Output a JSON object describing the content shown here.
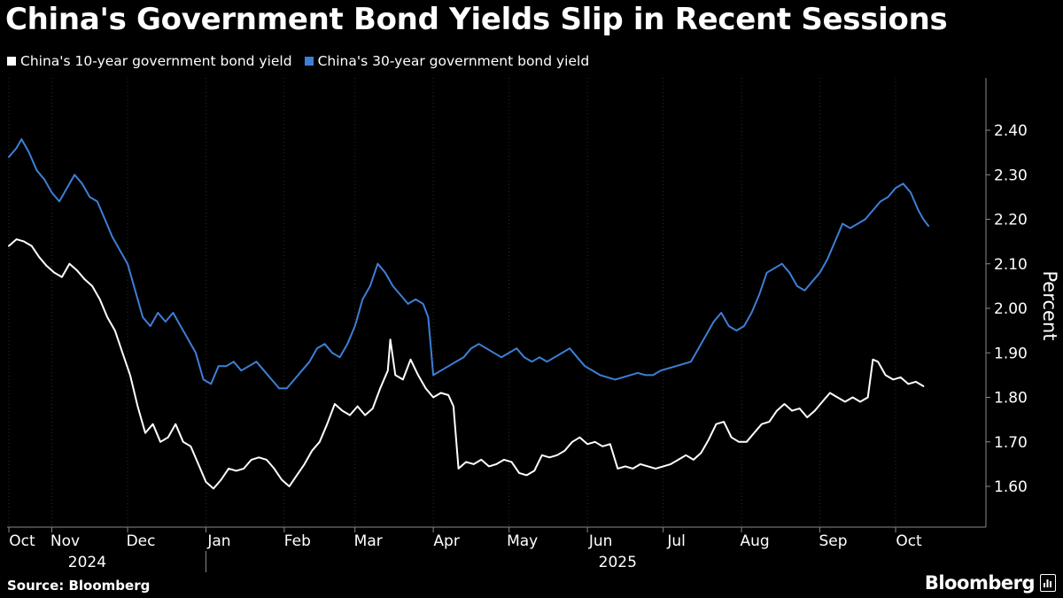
{
  "title": "China's Government Bond Yields Slip in Recent Sessions",
  "legend": [
    {
      "label": "China's 10-year government bond yield",
      "color": "#ffffff"
    },
    {
      "label": "China's 30-year government bond yield",
      "color": "#3d7fd6"
    }
  ],
  "source": "Source: Bloomberg",
  "brand": "Bloomberg",
  "chart_data": {
    "type": "line",
    "title": "China's Government Bond Yields Slip in Recent Sessions",
    "ylabel": "Percent",
    "xlabel": "",
    "ylim": [
      1.52,
      2.46
    ],
    "yticks": [
      1.6,
      1.7,
      1.8,
      1.9,
      2.0,
      2.1,
      2.2,
      2.3,
      2.4
    ],
    "ytick_labels": [
      "1.60",
      "1.70",
      "1.80",
      "1.90",
      "2.00",
      "2.10",
      "2.20",
      "2.30",
      "2.40"
    ],
    "x_domain": [
      0,
      385
    ],
    "month_ticks": [
      {
        "label": "Oct",
        "x": 0
      },
      {
        "label": "Nov",
        "x": 17
      },
      {
        "label": "Dec",
        "x": 47
      },
      {
        "label": "Jan",
        "x": 78
      },
      {
        "label": "Feb",
        "x": 109
      },
      {
        "label": "Mar",
        "x": 137
      },
      {
        "label": "Apr",
        "x": 168
      },
      {
        "label": "May",
        "x": 198
      },
      {
        "label": "Jun",
        "x": 229
      },
      {
        "label": "Jul",
        "x": 259
      },
      {
        "label": "Aug",
        "x": 290
      },
      {
        "label": "Sep",
        "x": 321
      },
      {
        "label": "Oct",
        "x": 351
      }
    ],
    "year_labels": [
      {
        "label": "2024",
        "x": 31
      },
      {
        "label": "2025",
        "x": 241
      }
    ],
    "year_divider_x": 78,
    "series": [
      {
        "name": "China's 10-year government bond yield",
        "color": "#ffffff",
        "points": [
          [
            0,
            2.14
          ],
          [
            3,
            2.155
          ],
          [
            6,
            2.15
          ],
          [
            9,
            2.14
          ],
          [
            12,
            2.115
          ],
          [
            15,
            2.095
          ],
          [
            18,
            2.08
          ],
          [
            21,
            2.07
          ],
          [
            24,
            2.1
          ],
          [
            27,
            2.085
          ],
          [
            30,
            2.065
          ],
          [
            33,
            2.05
          ],
          [
            36,
            2.02
          ],
          [
            39,
            1.98
          ],
          [
            42,
            1.95
          ],
          [
            45,
            1.9
          ],
          [
            48,
            1.85
          ],
          [
            51,
            1.78
          ],
          [
            54,
            1.72
          ],
          [
            57,
            1.74
          ],
          [
            60,
            1.7
          ],
          [
            63,
            1.71
          ],
          [
            66,
            1.74
          ],
          [
            69,
            1.7
          ],
          [
            72,
            1.69
          ],
          [
            75,
            1.65
          ],
          [
            78,
            1.61
          ],
          [
            81,
            1.595
          ],
          [
            84,
            1.615
          ],
          [
            87,
            1.64
          ],
          [
            90,
            1.635
          ],
          [
            93,
            1.64
          ],
          [
            96,
            1.66
          ],
          [
            99,
            1.665
          ],
          [
            102,
            1.66
          ],
          [
            105,
            1.64
          ],
          [
            108,
            1.615
          ],
          [
            111,
            1.6
          ],
          [
            114,
            1.625
          ],
          [
            117,
            1.65
          ],
          [
            120,
            1.68
          ],
          [
            123,
            1.7
          ],
          [
            126,
            1.74
          ],
          [
            129,
            1.785
          ],
          [
            132,
            1.77
          ],
          [
            135,
            1.76
          ],
          [
            138,
            1.78
          ],
          [
            141,
            1.76
          ],
          [
            144,
            1.775
          ],
          [
            147,
            1.82
          ],
          [
            150,
            1.86
          ],
          [
            151,
            1.93
          ],
          [
            153,
            1.85
          ],
          [
            156,
            1.84
          ],
          [
            159,
            1.885
          ],
          [
            162,
            1.85
          ],
          [
            165,
            1.82
          ],
          [
            168,
            1.8
          ],
          [
            171,
            1.81
          ],
          [
            174,
            1.805
          ],
          [
            176,
            1.78
          ],
          [
            178,
            1.64
          ],
          [
            181,
            1.655
          ],
          [
            184,
            1.65
          ],
          [
            187,
            1.66
          ],
          [
            190,
            1.645
          ],
          [
            193,
            1.65
          ],
          [
            196,
            1.66
          ],
          [
            199,
            1.655
          ],
          [
            202,
            1.63
          ],
          [
            205,
            1.625
          ],
          [
            208,
            1.635
          ],
          [
            211,
            1.67
          ],
          [
            214,
            1.665
          ],
          [
            217,
            1.67
          ],
          [
            220,
            1.68
          ],
          [
            223,
            1.7
          ],
          [
            226,
            1.71
          ],
          [
            229,
            1.695
          ],
          [
            232,
            1.7
          ],
          [
            235,
            1.69
          ],
          [
            238,
            1.695
          ],
          [
            241,
            1.64
          ],
          [
            244,
            1.645
          ],
          [
            247,
            1.64
          ],
          [
            250,
            1.65
          ],
          [
            253,
            1.645
          ],
          [
            256,
            1.64
          ],
          [
            259,
            1.645
          ],
          [
            262,
            1.65
          ],
          [
            265,
            1.66
          ],
          [
            268,
            1.67
          ],
          [
            271,
            1.66
          ],
          [
            274,
            1.675
          ],
          [
            277,
            1.705
          ],
          [
            280,
            1.74
          ],
          [
            283,
            1.745
          ],
          [
            286,
            1.71
          ],
          [
            289,
            1.7
          ],
          [
            292,
            1.7
          ],
          [
            295,
            1.72
          ],
          [
            298,
            1.74
          ],
          [
            301,
            1.745
          ],
          [
            304,
            1.77
          ],
          [
            307,
            1.785
          ],
          [
            310,
            1.77
          ],
          [
            313,
            1.775
          ],
          [
            316,
            1.755
          ],
          [
            319,
            1.77
          ],
          [
            322,
            1.79
          ],
          [
            325,
            1.81
          ],
          [
            328,
            1.8
          ],
          [
            331,
            1.79
          ],
          [
            334,
            1.8
          ],
          [
            337,
            1.79
          ],
          [
            340,
            1.8
          ],
          [
            342,
            1.885
          ],
          [
            344,
            1.88
          ],
          [
            347,
            1.85
          ],
          [
            350,
            1.84
          ],
          [
            353,
            1.845
          ],
          [
            356,
            1.83
          ],
          [
            359,
            1.835
          ],
          [
            362,
            1.825
          ]
        ]
      },
      {
        "name": "China's 30-year government bond yield",
        "color": "#3d7fd6",
        "points": [
          [
            0,
            2.34
          ],
          [
            3,
            2.36
          ],
          [
            5,
            2.38
          ],
          [
            8,
            2.35
          ],
          [
            11,
            2.31
          ],
          [
            14,
            2.29
          ],
          [
            17,
            2.26
          ],
          [
            20,
            2.24
          ],
          [
            23,
            2.27
          ],
          [
            26,
            2.3
          ],
          [
            29,
            2.28
          ],
          [
            32,
            2.25
          ],
          [
            35,
            2.24
          ],
          [
            38,
            2.2
          ],
          [
            41,
            2.16
          ],
          [
            44,
            2.13
          ],
          [
            47,
            2.1
          ],
          [
            50,
            2.04
          ],
          [
            53,
            1.98
          ],
          [
            56,
            1.96
          ],
          [
            59,
            1.99
          ],
          [
            62,
            1.97
          ],
          [
            65,
            1.99
          ],
          [
            68,
            1.96
          ],
          [
            71,
            1.93
          ],
          [
            74,
            1.9
          ],
          [
            77,
            1.84
          ],
          [
            80,
            1.83
          ],
          [
            83,
            1.87
          ],
          [
            86,
            1.87
          ],
          [
            89,
            1.88
          ],
          [
            92,
            1.86
          ],
          [
            95,
            1.87
          ],
          [
            98,
            1.88
          ],
          [
            101,
            1.86
          ],
          [
            104,
            1.84
          ],
          [
            107,
            1.82
          ],
          [
            110,
            1.82
          ],
          [
            113,
            1.84
          ],
          [
            116,
            1.86
          ],
          [
            119,
            1.88
          ],
          [
            122,
            1.91
          ],
          [
            125,
            1.92
          ],
          [
            128,
            1.9
          ],
          [
            131,
            1.89
          ],
          [
            134,
            1.92
          ],
          [
            137,
            1.96
          ],
          [
            140,
            2.02
          ],
          [
            143,
            2.05
          ],
          [
            146,
            2.1
          ],
          [
            149,
            2.08
          ],
          [
            152,
            2.05
          ],
          [
            155,
            2.03
          ],
          [
            158,
            2.01
          ],
          [
            161,
            2.02
          ],
          [
            164,
            2.01
          ],
          [
            166,
            1.98
          ],
          [
            168,
            1.85
          ],
          [
            171,
            1.86
          ],
          [
            174,
            1.87
          ],
          [
            177,
            1.88
          ],
          [
            180,
            1.89
          ],
          [
            183,
            1.91
          ],
          [
            186,
            1.92
          ],
          [
            189,
            1.91
          ],
          [
            192,
            1.9
          ],
          [
            195,
            1.89
          ],
          [
            198,
            1.9
          ],
          [
            201,
            1.91
          ],
          [
            204,
            1.89
          ],
          [
            207,
            1.88
          ],
          [
            210,
            1.89
          ],
          [
            213,
            1.88
          ],
          [
            216,
            1.89
          ],
          [
            219,
            1.9
          ],
          [
            222,
            1.91
          ],
          [
            225,
            1.89
          ],
          [
            228,
            1.87
          ],
          [
            231,
            1.86
          ],
          [
            234,
            1.85
          ],
          [
            237,
            1.845
          ],
          [
            240,
            1.84
          ],
          [
            243,
            1.845
          ],
          [
            246,
            1.85
          ],
          [
            249,
            1.855
          ],
          [
            252,
            1.85
          ],
          [
            255,
            1.85
          ],
          [
            258,
            1.86
          ],
          [
            261,
            1.865
          ],
          [
            264,
            1.87
          ],
          [
            267,
            1.875
          ],
          [
            270,
            1.88
          ],
          [
            273,
            1.91
          ],
          [
            276,
            1.94
          ],
          [
            279,
            1.97
          ],
          [
            282,
            1.99
          ],
          [
            285,
            1.96
          ],
          [
            288,
            1.95
          ],
          [
            291,
            1.96
          ],
          [
            294,
            1.99
          ],
          [
            297,
            2.03
          ],
          [
            300,
            2.08
          ],
          [
            303,
            2.09
          ],
          [
            306,
            2.1
          ],
          [
            309,
            2.08
          ],
          [
            312,
            2.05
          ],
          [
            315,
            2.04
          ],
          [
            318,
            2.06
          ],
          [
            321,
            2.08
          ],
          [
            324,
            2.11
          ],
          [
            327,
            2.15
          ],
          [
            330,
            2.19
          ],
          [
            333,
            2.18
          ],
          [
            336,
            2.19
          ],
          [
            339,
            2.2
          ],
          [
            342,
            2.22
          ],
          [
            345,
            2.24
          ],
          [
            348,
            2.25
          ],
          [
            351,
            2.27
          ],
          [
            354,
            2.28
          ],
          [
            357,
            2.26
          ],
          [
            360,
            2.22
          ],
          [
            362,
            2.2
          ],
          [
            364,
            2.185
          ]
        ]
      }
    ]
  }
}
